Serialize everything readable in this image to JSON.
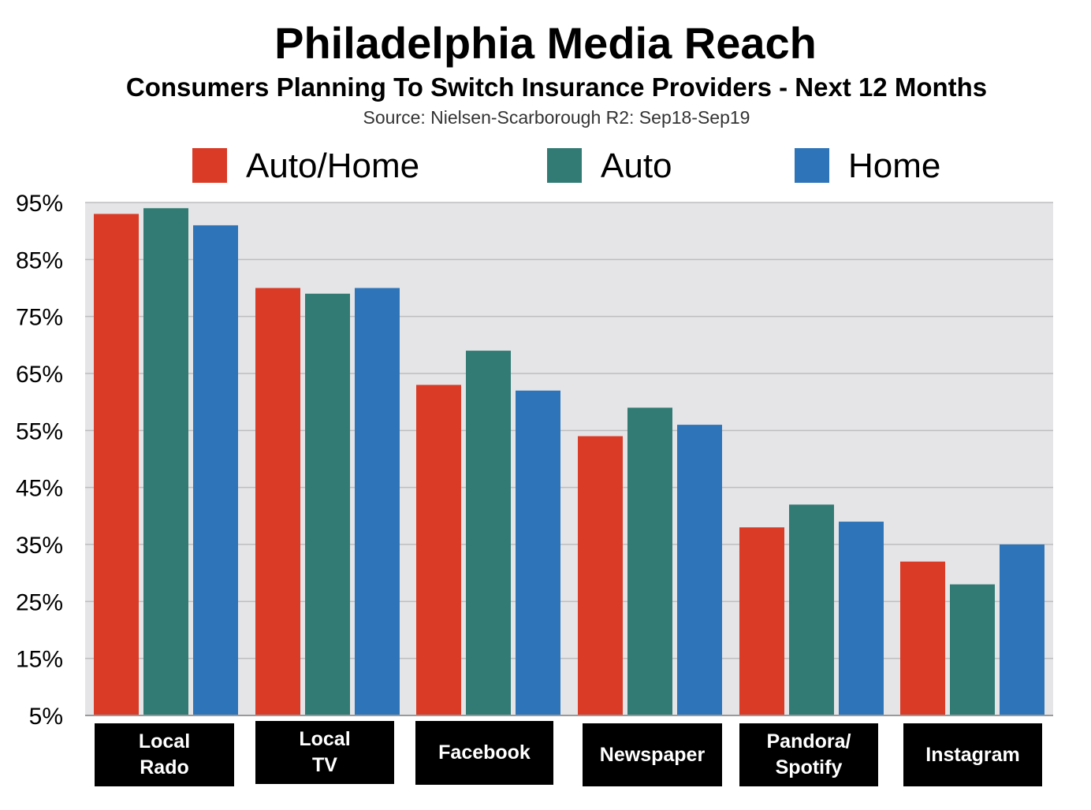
{
  "chart_data": {
    "type": "bar",
    "title": "Philadelphia Media Reach",
    "subtitle": "Consumers Planning To Switch Insurance Providers - Next 12 Months",
    "source": "Source: Nielsen-Scarborough R2: Sep18-Sep19",
    "categories": [
      "Local\nRado",
      "Local\nTV",
      "Facebook",
      "Newspaper",
      "Pandora/\nSpotify",
      "Instagram"
    ],
    "series": [
      {
        "name": "Auto/Home",
        "color": "#d93b26",
        "values": [
          93,
          80,
          63,
          54,
          38,
          32
        ]
      },
      {
        "name": "Auto",
        "color": "#327b74",
        "values": [
          94,
          79,
          69,
          59,
          42,
          28
        ]
      },
      {
        "name": "Home",
        "color": "#2e74b8",
        "values": [
          91,
          80,
          62,
          56,
          39,
          35
        ]
      }
    ],
    "yticks": [
      "5%",
      "15%",
      "25%",
      "35%",
      "45%",
      "55%",
      "65%",
      "75%",
      "85%",
      "95%"
    ],
    "ylim": [
      5,
      95
    ],
    "grid": true,
    "legend_position": "top",
    "plot_background": "#e5e5e8",
    "xlabel": "",
    "ylabel": ""
  }
}
